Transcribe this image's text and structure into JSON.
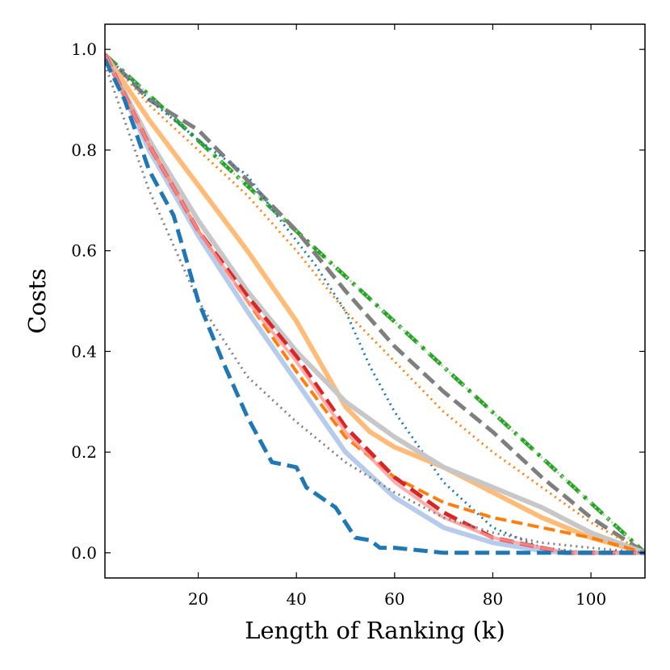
{
  "chart_data": {
    "type": "line",
    "xlabel": "Length of Ranking (k)",
    "ylabel": "Costs",
    "xlim": [
      1,
      111
    ],
    "ylim": [
      -0.05,
      1.05
    ],
    "xticks": [
      20,
      40,
      60,
      80,
      100
    ],
    "xtick_labels": [
      "20",
      "40",
      "60",
      "80",
      "100"
    ],
    "yticks": [
      0.0,
      0.2,
      0.4,
      0.6,
      0.8,
      1.0
    ],
    "ytick_labels": [
      "0.0",
      "0.2",
      "0.4",
      "0.6",
      "0.8",
      "1.0"
    ],
    "grid": false,
    "legend": "none",
    "series": [
      {
        "color": "#2ca02c",
        "style": "dashdot",
        "width": 5,
        "opacity": 1,
        "x": [
          1,
          111
        ],
        "y": [
          0.99,
          0.0
        ]
      },
      {
        "color": "#98df8a",
        "style": "dotted",
        "width": 3,
        "opacity": 0.9,
        "x": [
          1,
          111
        ],
        "y": [
          0.99,
          0.0
        ]
      },
      {
        "color": "#7f7f7f",
        "style": "dashed",
        "width": 5,
        "opacity": 1,
        "x": [
          1,
          10,
          20,
          30,
          40,
          50,
          60,
          70,
          80,
          90,
          100,
          111
        ],
        "y": [
          0.99,
          0.9,
          0.84,
          0.74,
          0.64,
          0.52,
          0.41,
          0.32,
          0.24,
          0.15,
          0.07,
          0.0
        ]
      },
      {
        "color": "#ff7f0e",
        "style": "dotted",
        "width": 3,
        "opacity": 1,
        "x": [
          1,
          10,
          20,
          30,
          40,
          50,
          60,
          70,
          80,
          90,
          100,
          111
        ],
        "y": [
          0.99,
          0.89,
          0.8,
          0.71,
          0.6,
          0.48,
          0.38,
          0.28,
          0.2,
          0.13,
          0.06,
          0.0
        ]
      },
      {
        "color": "#1f77b4",
        "style": "dotted",
        "width": 3,
        "opacity": 1,
        "x": [
          1,
          10,
          20,
          30,
          36,
          44,
          50,
          55,
          60,
          65,
          70,
          80,
          90,
          100,
          111
        ],
        "y": [
          0.99,
          0.9,
          0.82,
          0.75,
          0.67,
          0.57,
          0.48,
          0.37,
          0.28,
          0.21,
          0.14,
          0.05,
          0.01,
          0.0,
          0.0
        ]
      },
      {
        "color": "#ffbb78",
        "style": "solid",
        "width": 6,
        "opacity": 1,
        "x": [
          1,
          10,
          20,
          30,
          40,
          50,
          55,
          60,
          70,
          80,
          90,
          100,
          111
        ],
        "y": [
          0.99,
          0.86,
          0.73,
          0.6,
          0.46,
          0.29,
          0.24,
          0.21,
          0.17,
          0.12,
          0.07,
          0.03,
          0.0
        ]
      },
      {
        "color": "#c7c7c7",
        "style": "solid",
        "width": 6,
        "opacity": 1,
        "x": [
          1,
          10,
          20,
          30,
          40,
          50,
          60,
          65,
          70,
          80,
          90,
          100,
          111
        ],
        "y": [
          0.99,
          0.82,
          0.66,
          0.52,
          0.4,
          0.3,
          0.23,
          0.2,
          0.17,
          0.13,
          0.09,
          0.04,
          0.0
        ]
      },
      {
        "color": "#aec7e8",
        "style": "solid",
        "width": 6,
        "opacity": 0.9,
        "x": [
          1,
          10,
          20,
          30,
          40,
          50,
          60,
          70,
          80,
          90,
          95,
          111
        ],
        "y": [
          0.99,
          0.8,
          0.63,
          0.48,
          0.34,
          0.2,
          0.11,
          0.05,
          0.02,
          0.004,
          0.0,
          0.0
        ]
      },
      {
        "color": "#ff7f0e",
        "style": "dashed",
        "width": 4,
        "opacity": 1,
        "x": [
          1,
          10,
          20,
          30,
          40,
          50,
          60,
          70,
          80,
          90,
          100,
          111
        ],
        "y": [
          0.99,
          0.81,
          0.64,
          0.5,
          0.36,
          0.23,
          0.15,
          0.1,
          0.07,
          0.05,
          0.03,
          0.0
        ]
      },
      {
        "color": "#d62728",
        "style": "dashed",
        "width": 5,
        "opacity": 1,
        "x": [
          1,
          10,
          20,
          30,
          40,
          50,
          60,
          70,
          80,
          90,
          95,
          111
        ],
        "y": [
          0.99,
          0.81,
          0.64,
          0.51,
          0.39,
          0.25,
          0.15,
          0.08,
          0.03,
          0.01,
          0.0,
          0.0
        ]
      },
      {
        "color": "#ff9896",
        "style": "solid",
        "width": 4,
        "opacity": 0.8,
        "x": [
          1,
          10,
          20,
          30,
          40,
          50,
          60,
          70,
          80,
          90,
          95,
          111
        ],
        "y": [
          0.99,
          0.81,
          0.64,
          0.5,
          0.38,
          0.24,
          0.14,
          0.07,
          0.03,
          0.01,
          0.0,
          0.0
        ]
      },
      {
        "color": "#7f7f7f",
        "style": "dotted",
        "width": 3,
        "opacity": 1,
        "x": [
          1,
          10,
          20,
          30,
          40,
          50,
          60,
          70,
          80,
          90,
          100,
          111
        ],
        "y": [
          0.97,
          0.72,
          0.5,
          0.35,
          0.26,
          0.18,
          0.12,
          0.07,
          0.04,
          0.02,
          0.01,
          0.0
        ]
      },
      {
        "color": "#1f77b4",
        "style": "dashed",
        "width": 5,
        "opacity": 1,
        "x": [
          1,
          5,
          10,
          15,
          20,
          25,
          30,
          35,
          40,
          42,
          45,
          48,
          50,
          52,
          55,
          57,
          60,
          70,
          111
        ],
        "y": [
          0.98,
          0.9,
          0.76,
          0.67,
          0.5,
          0.38,
          0.27,
          0.18,
          0.17,
          0.13,
          0.11,
          0.09,
          0.06,
          0.03,
          0.025,
          0.01,
          0.01,
          0.0,
          0.0
        ]
      }
    ]
  }
}
